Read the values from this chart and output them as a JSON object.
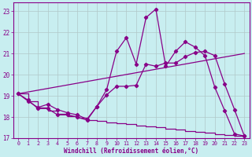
{
  "bg_color": "#c8eef0",
  "line_color": "#880088",
  "grid_color": "#b0c8c8",
  "xlabel": "Windchill (Refroidissement éolien,°C)",
  "xlim": [
    -0.5,
    23.5
  ],
  "ylim": [
    17,
    23.4
  ],
  "yticks": [
    17,
    18,
    19,
    20,
    21,
    22,
    23
  ],
  "xticks": [
    0,
    1,
    2,
    3,
    4,
    5,
    6,
    7,
    8,
    9,
    10,
    11,
    12,
    13,
    14,
    15,
    16,
    17,
    18,
    19,
    20,
    21,
    22,
    23
  ],
  "line1_x": [
    0,
    1,
    2,
    3,
    4,
    5,
    6,
    7,
    8,
    9,
    10,
    11,
    12,
    13,
    14,
    15,
    16,
    17,
    18,
    19,
    20,
    21,
    22,
    23
  ],
  "line1_y": [
    19.1,
    18.8,
    18.4,
    18.4,
    18.1,
    18.1,
    18.0,
    17.85,
    18.5,
    19.3,
    21.1,
    21.75,
    20.5,
    22.7,
    23.1,
    20.4,
    21.1,
    21.55,
    21.3,
    20.9,
    19.4,
    18.3,
    17.2,
    17.1
  ],
  "line2_x": [
    0,
    1,
    2,
    3,
    4,
    5,
    6,
    7,
    8,
    9,
    10,
    11,
    12,
    13,
    14,
    15,
    16,
    17,
    18,
    19,
    20,
    21,
    22,
    23
  ],
  "line2_y": [
    19.1,
    18.75,
    18.45,
    18.6,
    18.35,
    18.2,
    18.1,
    17.9,
    18.5,
    19.05,
    19.45,
    19.45,
    19.5,
    20.5,
    20.4,
    20.55,
    20.55,
    20.85,
    21.05,
    21.1,
    20.9,
    19.55,
    18.35,
    17.1
  ],
  "line3_x": [
    0,
    23
  ],
  "line3_y": [
    19.1,
    21.0
  ],
  "line4_x": [
    0,
    1,
    2,
    3,
    4,
    5,
    6,
    7,
    8,
    9,
    10,
    11,
    12,
    13,
    14,
    15,
    16,
    17,
    18,
    19,
    20,
    21,
    22,
    23
  ],
  "line4_y": [
    19.1,
    18.75,
    18.45,
    18.3,
    18.15,
    18.05,
    17.95,
    17.85,
    17.8,
    17.75,
    17.7,
    17.65,
    17.6,
    17.55,
    17.5,
    17.45,
    17.4,
    17.35,
    17.3,
    17.25,
    17.2,
    17.15,
    17.1,
    17.05
  ],
  "marker": "D",
  "marker_size": 2.2,
  "lw": 0.9
}
